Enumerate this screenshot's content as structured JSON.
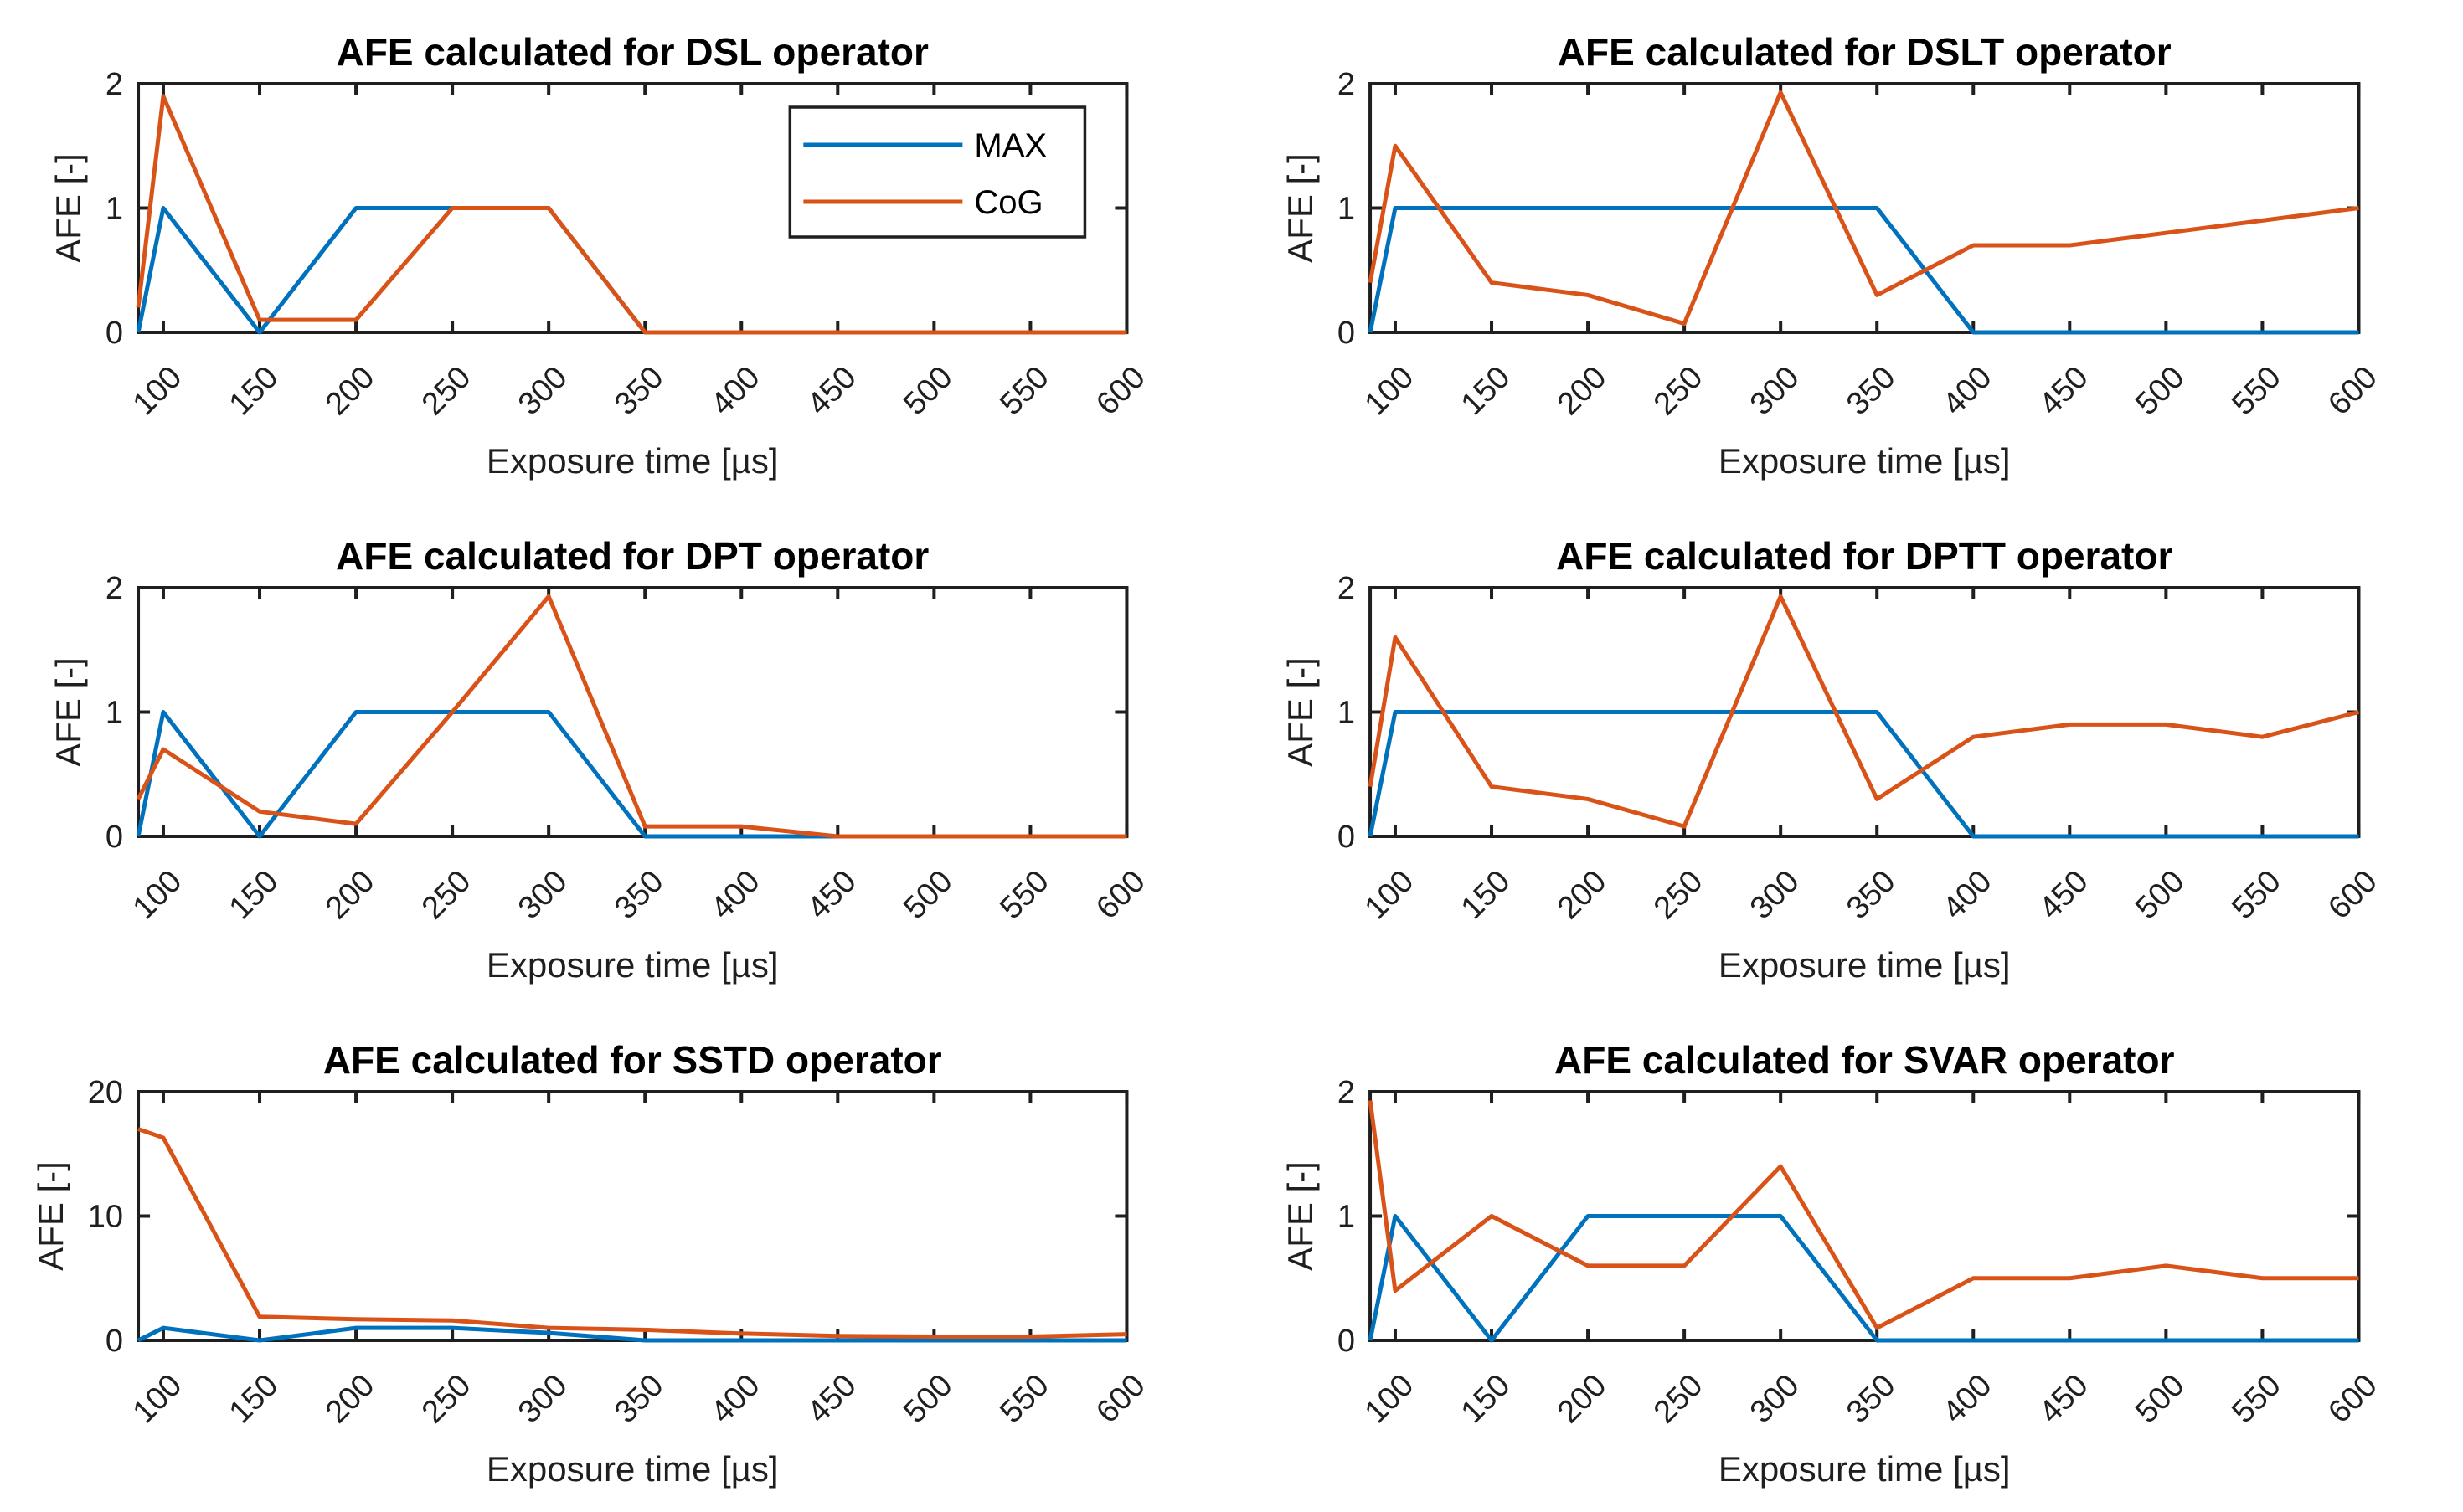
{
  "figure": {
    "background": "#ffffff",
    "axis_color": "#1f1f1f",
    "title_color": "#000000",
    "xtick_angle": 45,
    "grid": "off",
    "series_colors": {
      "MAX": "#0072BD",
      "CoG": "#D95319"
    },
    "legend": {
      "entries": [
        "MAX",
        "CoG"
      ],
      "position": "northeast-first-subplot"
    }
  },
  "chart_data": [
    {
      "type": "line",
      "key": "dsl",
      "title": "AFE calculated for DSL operator",
      "xlabel": "Exposure time [µs]",
      "ylabel": "AFE [-]",
      "x": [
        87,
        100,
        150,
        200,
        250,
        300,
        350,
        400,
        450,
        500,
        550,
        600
      ],
      "xticks": [
        100,
        150,
        200,
        250,
        300,
        350,
        400,
        450,
        500,
        550,
        600
      ],
      "xlim": [
        87,
        600
      ],
      "ylim": [
        0,
        2
      ],
      "yticks": [
        0,
        1,
        2
      ],
      "legend": true,
      "series": [
        {
          "name": "MAX",
          "color": "#0072BD",
          "values": [
            0,
            1,
            0,
            1,
            1,
            1,
            0,
            0,
            0,
            0,
            0,
            0
          ]
        },
        {
          "name": "CoG",
          "color": "#D95319",
          "values": [
            0.2,
            1.9,
            0.1,
            0.1,
            1,
            1,
            0,
            0,
            0,
            0,
            0,
            0
          ]
        }
      ]
    },
    {
      "type": "line",
      "key": "dslt",
      "title": "AFE calculated for DSLT operator",
      "xlabel": "Exposure time [µs]",
      "ylabel": "AFE [-]",
      "x": [
        87,
        100,
        150,
        200,
        250,
        300,
        350,
        400,
        450,
        500,
        550,
        600
      ],
      "xticks": [
        100,
        150,
        200,
        250,
        300,
        350,
        400,
        450,
        500,
        550,
        600
      ],
      "xlim": [
        87,
        600
      ],
      "ylim": [
        0,
        2
      ],
      "yticks": [
        0,
        1,
        2
      ],
      "legend": false,
      "series": [
        {
          "name": "MAX",
          "color": "#0072BD",
          "values": [
            0,
            1,
            1,
            1,
            1,
            1,
            1,
            0,
            0,
            0,
            0,
            0
          ]
        },
        {
          "name": "CoG",
          "color": "#D95319",
          "values": [
            0.4,
            1.5,
            0.4,
            0.3,
            0.07,
            1.93,
            0.3,
            0.7,
            0.7,
            0.8,
            0.9,
            1.0
          ]
        }
      ]
    },
    {
      "type": "line",
      "key": "dpt",
      "title": "AFE calculated for DPT operator",
      "xlabel": "Exposure time [µs]",
      "ylabel": "AFE [-]",
      "x": [
        87,
        100,
        150,
        200,
        250,
        300,
        350,
        400,
        450,
        500,
        550,
        600
      ],
      "xticks": [
        100,
        150,
        200,
        250,
        300,
        350,
        400,
        450,
        500,
        550,
        600
      ],
      "xlim": [
        87,
        600
      ],
      "ylim": [
        0,
        2
      ],
      "yticks": [
        0,
        1,
        2
      ],
      "legend": false,
      "series": [
        {
          "name": "MAX",
          "color": "#0072BD",
          "values": [
            0,
            1,
            0,
            1,
            1,
            1,
            0,
            0,
            0,
            0,
            0,
            0
          ]
        },
        {
          "name": "CoG",
          "color": "#D95319",
          "values": [
            0.3,
            0.7,
            0.2,
            0.1,
            1.0,
            1.93,
            0.08,
            0.08,
            0,
            0,
            0,
            0
          ]
        }
      ]
    },
    {
      "type": "line",
      "key": "dptt",
      "title": "AFE calculated for DPTT operator",
      "xlabel": "Exposure time [µs]",
      "ylabel": "AFE [-]",
      "x": [
        87,
        100,
        150,
        200,
        250,
        300,
        350,
        400,
        450,
        500,
        550,
        600
      ],
      "xticks": [
        100,
        150,
        200,
        250,
        300,
        350,
        400,
        450,
        500,
        550,
        600
      ],
      "xlim": [
        87,
        600
      ],
      "ylim": [
        0,
        2
      ],
      "yticks": [
        0,
        1,
        2
      ],
      "legend": false,
      "series": [
        {
          "name": "MAX",
          "color": "#0072BD",
          "values": [
            0,
            1,
            1,
            1,
            1,
            1,
            1,
            0,
            0,
            0,
            0,
            0
          ]
        },
        {
          "name": "CoG",
          "color": "#D95319",
          "values": [
            0.4,
            1.6,
            0.4,
            0.3,
            0.08,
            1.93,
            0.3,
            0.8,
            0.9,
            0.9,
            0.8,
            1.0
          ]
        }
      ]
    },
    {
      "type": "line",
      "key": "sstd",
      "title": "AFE calculated for SSTD operator",
      "xlabel": "Exposure time [µs]",
      "ylabel": "AFE [-]",
      "x": [
        87,
        100,
        150,
        200,
        250,
        300,
        350,
        400,
        450,
        500,
        550,
        600
      ],
      "xticks": [
        100,
        150,
        200,
        250,
        300,
        350,
        400,
        450,
        500,
        550,
        600
      ],
      "xlim": [
        87,
        600
      ],
      "ylim": [
        0,
        20
      ],
      "yticks": [
        0,
        10,
        20
      ],
      "legend": false,
      "series": [
        {
          "name": "MAX",
          "color": "#0072BD",
          "values": [
            0,
            1,
            0,
            1,
            1,
            0.6,
            0,
            0,
            0,
            0,
            0,
            0
          ]
        },
        {
          "name": "CoG",
          "color": "#D95319",
          "values": [
            17,
            16.3,
            1.9,
            1.7,
            1.6,
            1.0,
            0.85,
            0.55,
            0.35,
            0.3,
            0.3,
            0.5
          ]
        }
      ]
    },
    {
      "type": "line",
      "key": "svar",
      "title": "AFE calculated for SVAR operator",
      "xlabel": "Exposure time [µs]",
      "ylabel": "AFE [-]",
      "x": [
        87,
        100,
        150,
        200,
        250,
        300,
        350,
        400,
        450,
        500,
        550,
        600
      ],
      "xticks": [
        100,
        150,
        200,
        250,
        300,
        350,
        400,
        450,
        500,
        550,
        600
      ],
      "xlim": [
        87,
        600
      ],
      "ylim": [
        0,
        2
      ],
      "yticks": [
        0,
        1,
        2
      ],
      "legend": false,
      "series": [
        {
          "name": "MAX",
          "color": "#0072BD",
          "values": [
            0,
            1,
            0,
            1,
            1,
            1,
            0,
            0,
            0,
            0,
            0,
            0
          ]
        },
        {
          "name": "CoG",
          "color": "#D95319",
          "values": [
            1.93,
            0.4,
            1.0,
            0.6,
            0.6,
            1.4,
            0.1,
            0.5,
            0.5,
            0.6,
            0.5,
            0.5
          ]
        }
      ]
    }
  ]
}
